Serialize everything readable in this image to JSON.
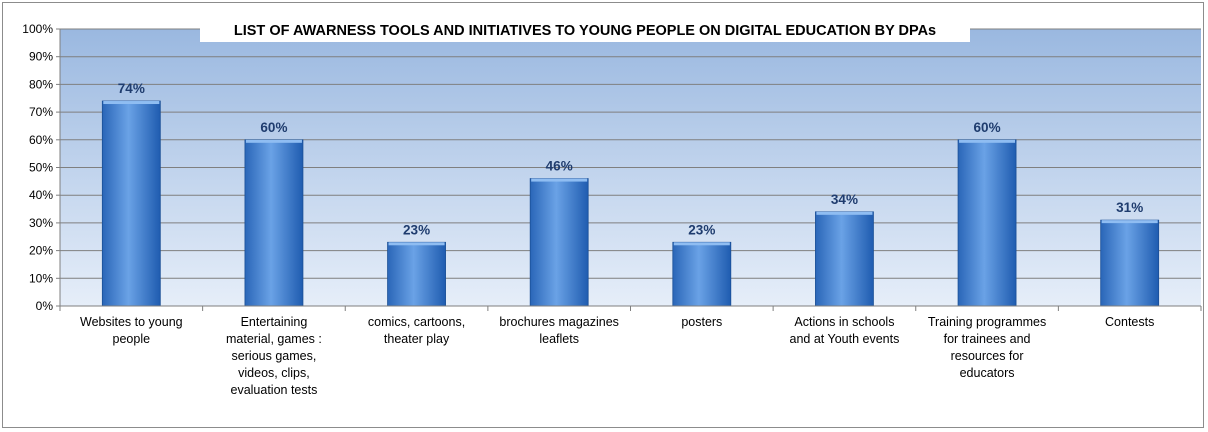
{
  "chart_data": {
    "type": "bar",
    "title": "LIST OF AWARNESS TOOLS AND INITIATIVES TO YOUNG PEOPLE ON DIGITAL EDUCATION BY DPAs",
    "xlabel": "",
    "ylabel": "",
    "ylim": [
      0,
      100
    ],
    "y_ticks": [
      "0%",
      "10%",
      "20%",
      "30%",
      "40%",
      "50%",
      "60%",
      "70%",
      "80%",
      "90%",
      "100%"
    ],
    "categories": [
      [
        "Websites to young",
        "people"
      ],
      [
        "Entertaining",
        "material, games :",
        "serious games,",
        "videos, clips,",
        "evaluation tests"
      ],
      [
        "comics, cartoons,",
        "theater play"
      ],
      [
        "brochures magazines",
        "leaflets"
      ],
      [
        "posters"
      ],
      [
        "Actions in schools",
        "and at Youth events"
      ],
      [
        "Training programmes",
        "for trainees and",
        "resources for",
        "educators"
      ],
      [
        "Contests"
      ]
    ],
    "values": [
      74,
      60,
      23,
      46,
      23,
      34,
      60,
      31
    ],
    "data_labels": [
      "74%",
      "60%",
      "23%",
      "46%",
      "23%",
      "34%",
      "60%",
      "31%"
    ],
    "grid": true,
    "legend": "none",
    "colors": {
      "bar_light": "#6aa2e6",
      "bar_dark": "#1f5cb0",
      "plot_bg_top": "#9ab8e0",
      "plot_bg_bottom": "#e6eef9",
      "gridline": "#7f7f7f",
      "data_label": "#1f3c6e"
    }
  }
}
